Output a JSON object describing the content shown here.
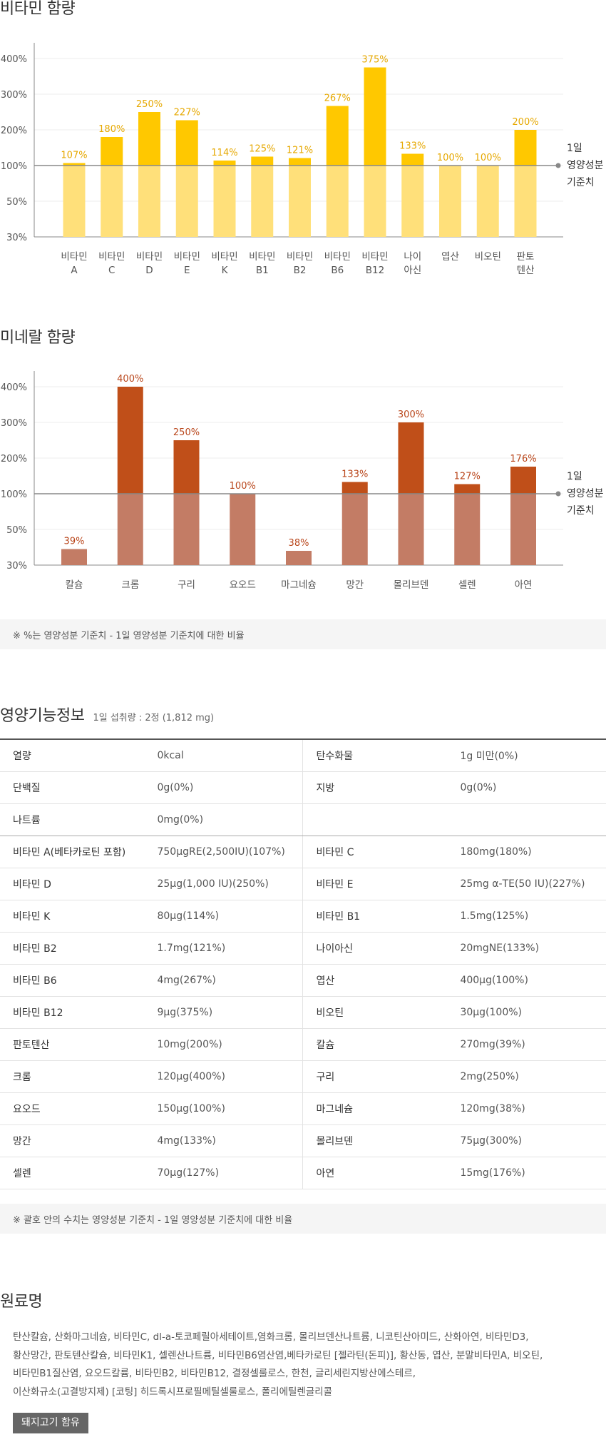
{
  "vitamin": {
    "title": "비타민 함량",
    "legend": [
      "1일",
      "영양성분",
      "기준치"
    ],
    "chart_data": {
      "type": "bar",
      "title": "비타민 함량",
      "y_tick_labels": [
        "400%",
        "300%",
        "200%",
        "100%",
        "50%",
        "30%"
      ],
      "reference_line_label": "1일 영양성분 기준치",
      "categories": [
        [
          "비타민",
          "A"
        ],
        [
          "비타민",
          "C"
        ],
        [
          "비타민",
          "D"
        ],
        [
          "비타민",
          "E"
        ],
        [
          "비타민",
          "K"
        ],
        [
          "비타민",
          "B1"
        ],
        [
          "비타민",
          "B2"
        ],
        [
          "비타민",
          "B6"
        ],
        [
          "비타민",
          "B12"
        ],
        [
          "나이",
          "아신"
        ],
        [
          "엽산"
        ],
        [
          "비오틴"
        ],
        [
          "판토",
          "텐산"
        ]
      ],
      "values": [
        107,
        180,
        250,
        227,
        114,
        125,
        121,
        267,
        375,
        133,
        100,
        100,
        200
      ],
      "labels": [
        "107%",
        "180%",
        "250%",
        "227%",
        "114%",
        "125%",
        "121%",
        "267%",
        "375%",
        "133%",
        "100%",
        "100%",
        "200%"
      ]
    },
    "colors": {
      "above": "#ffc800",
      "below": "#ffe07a",
      "label": "#e6a800"
    }
  },
  "mineral": {
    "title": "미네랄 함량",
    "legend": [
      "1일",
      "영양성분",
      "기준치"
    ],
    "chart_data": {
      "type": "bar",
      "title": "미네랄 함량",
      "y_tick_labels": [
        "400%",
        "300%",
        "200%",
        "100%",
        "50%",
        "30%"
      ],
      "reference_line_label": "1일 영양성분 기준치",
      "categories": [
        [
          "칼슘"
        ],
        [
          "크롬"
        ],
        [
          "구리"
        ],
        [
          "요오드"
        ],
        [
          "마그네슘"
        ],
        [
          "망간"
        ],
        [
          "몰리브덴"
        ],
        [
          "셀렌"
        ],
        [
          "아연"
        ]
      ],
      "values": [
        39,
        400,
        250,
        100,
        38,
        133,
        300,
        127,
        176
      ],
      "labels": [
        "39%",
        "400%",
        "250%",
        "100%",
        "38%",
        "133%",
        "300%",
        "127%",
        "176%"
      ]
    },
    "colors": {
      "above": "#c04f19",
      "below": "#c37c65",
      "label": "#b9461b"
    }
  },
  "note1": "※ %는 영양성분 기준치 - 1일 영양성분 기준치에 대한 비율",
  "nutrition": {
    "title": "영양기능정보",
    "serving": "1일 섭취량 : 2정 (1,812 mg)",
    "rows": [
      [
        "열량",
        "0kcal",
        "탄수화물",
        "1g 미만(0%)"
      ],
      [
        "단백질",
        "0g(0%)",
        "지방",
        "0g(0%)"
      ],
      [
        "나트륨",
        "0mg(0%)",
        "",
        ""
      ],
      [
        "비타민 A(베타카로틴 포함)",
        "750μgRE(2,500IU)(107%)",
        "비타민 C",
        "180mg(180%)"
      ],
      [
        "비타민 D",
        "25μg(1,000 IU)(250%)",
        "비타민 E",
        "25mg α-TE(50 IU)(227%)"
      ],
      [
        "비타민 K",
        "80μg(114%)",
        "비타민 B1",
        "1.5mg(125%)"
      ],
      [
        "비타민 B2",
        "1.7mg(121%)",
        "나이아신",
        "20mgNE(133%)"
      ],
      [
        "비타민 B6",
        "4mg(267%)",
        "엽산",
        "400μg(100%)"
      ],
      [
        "비타민 B12",
        "9μg(375%)",
        "비오틴",
        "30μg(100%)"
      ],
      [
        "판토텐산",
        "10mg(200%)",
        "칼슘",
        "270mg(39%)"
      ],
      [
        "크롬",
        "120μg(400%)",
        "구리",
        "2mg(250%)"
      ],
      [
        "요오드",
        "150μg(100%)",
        "마그네슘",
        "120mg(38%)"
      ],
      [
        "망간",
        "4mg(133%)",
        "몰리브덴",
        "75μg(300%)"
      ],
      [
        "셀렌",
        "70μg(127%)",
        "아연",
        "15mg(176%)"
      ]
    ]
  },
  "note2": "※ 괄호 안의 수치는 영양성분 기준치 - 1일 영양성분 기준치에 대한 비율",
  "ingredients": {
    "title": "원료명",
    "lines": [
      "탄산칼슘, 산화마그네슘, 비타민C, dl-a-토코페릴아세테이트,염화크롬, 몰리브덴산나트륨, 니코틴산아미드, 산화아연, 비타민D3,",
      "황산망간, 판토텐산칼슘, 비타민K1, 셀렌산나트륨, 비타민B6염산염,베타카로틴 [젤라틴(돈피)], 황산동, 엽산, 분말비타민A, 비오틴,",
      "비타민B1질산염, 요오드칼륨, 비타민B2, 비타민B12, 결정셀룰로스, 한천, 글리세린지방산에스테르,",
      "이산화규소(고결방지제) [코팅] 히드록시프로필메틸셀룰로스, 폴리에틸렌글리콜"
    ],
    "badge": "돼지고기 함유"
  }
}
